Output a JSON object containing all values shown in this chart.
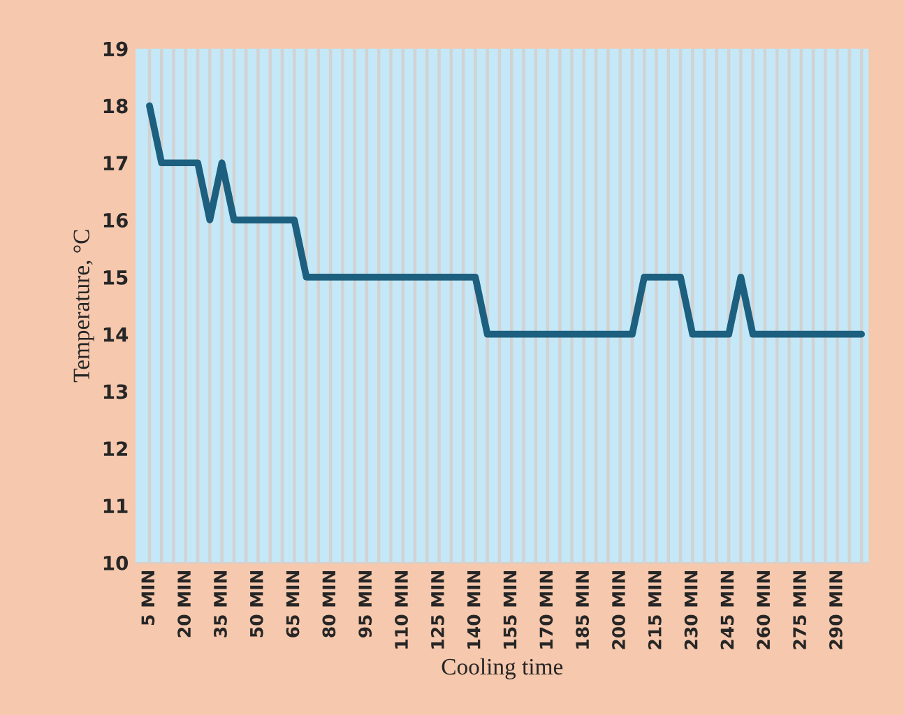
{
  "chart_data": {
    "type": "line",
    "xlabel": "Cooling time",
    "ylabel": "Temperature, °C",
    "categories": [
      "5 MIN",
      null,
      null,
      "20 MIN",
      null,
      null,
      "35 MIN",
      null,
      null,
      "50 MIN",
      null,
      null,
      "65 MIN",
      null,
      null,
      "80 MIN",
      null,
      null,
      "95 MIN",
      null,
      null,
      "110 MIN",
      null,
      null,
      "125 MIN",
      null,
      null,
      "140 MIN",
      null,
      null,
      "155 MIN",
      null,
      null,
      "170 MIN",
      null,
      null,
      "185 MIN",
      null,
      null,
      "200 MIN",
      null,
      null,
      "215 MIN",
      null,
      null,
      "230 MIN",
      null,
      null,
      "245 MIN",
      null,
      null,
      "260 MIN",
      null,
      null,
      "275 MIN",
      null,
      null,
      "290 MIN",
      null,
      null
    ],
    "series": [
      {
        "color": "#1d5f7e",
        "values": [
          18,
          17,
          17,
          17,
          17,
          16,
          17,
          16,
          16,
          16,
          16,
          16,
          16,
          15,
          15,
          15,
          15,
          15,
          15,
          15,
          15,
          15,
          15,
          15,
          15,
          15,
          15,
          15,
          14,
          14,
          14,
          14,
          14,
          14,
          14,
          14,
          14,
          14,
          14,
          14,
          14,
          15,
          15,
          15,
          15,
          14,
          14,
          14,
          14,
          15,
          14,
          14,
          14,
          14,
          14,
          14,
          14,
          14,
          14,
          14
        ]
      }
    ],
    "ylim": [
      10,
      19
    ],
    "yticks": [
      10,
      11,
      12,
      13,
      14,
      15,
      16,
      17,
      18,
      19
    ],
    "grid": "x",
    "marker": "none",
    "line_style": "solid",
    "legend": false
  }
}
